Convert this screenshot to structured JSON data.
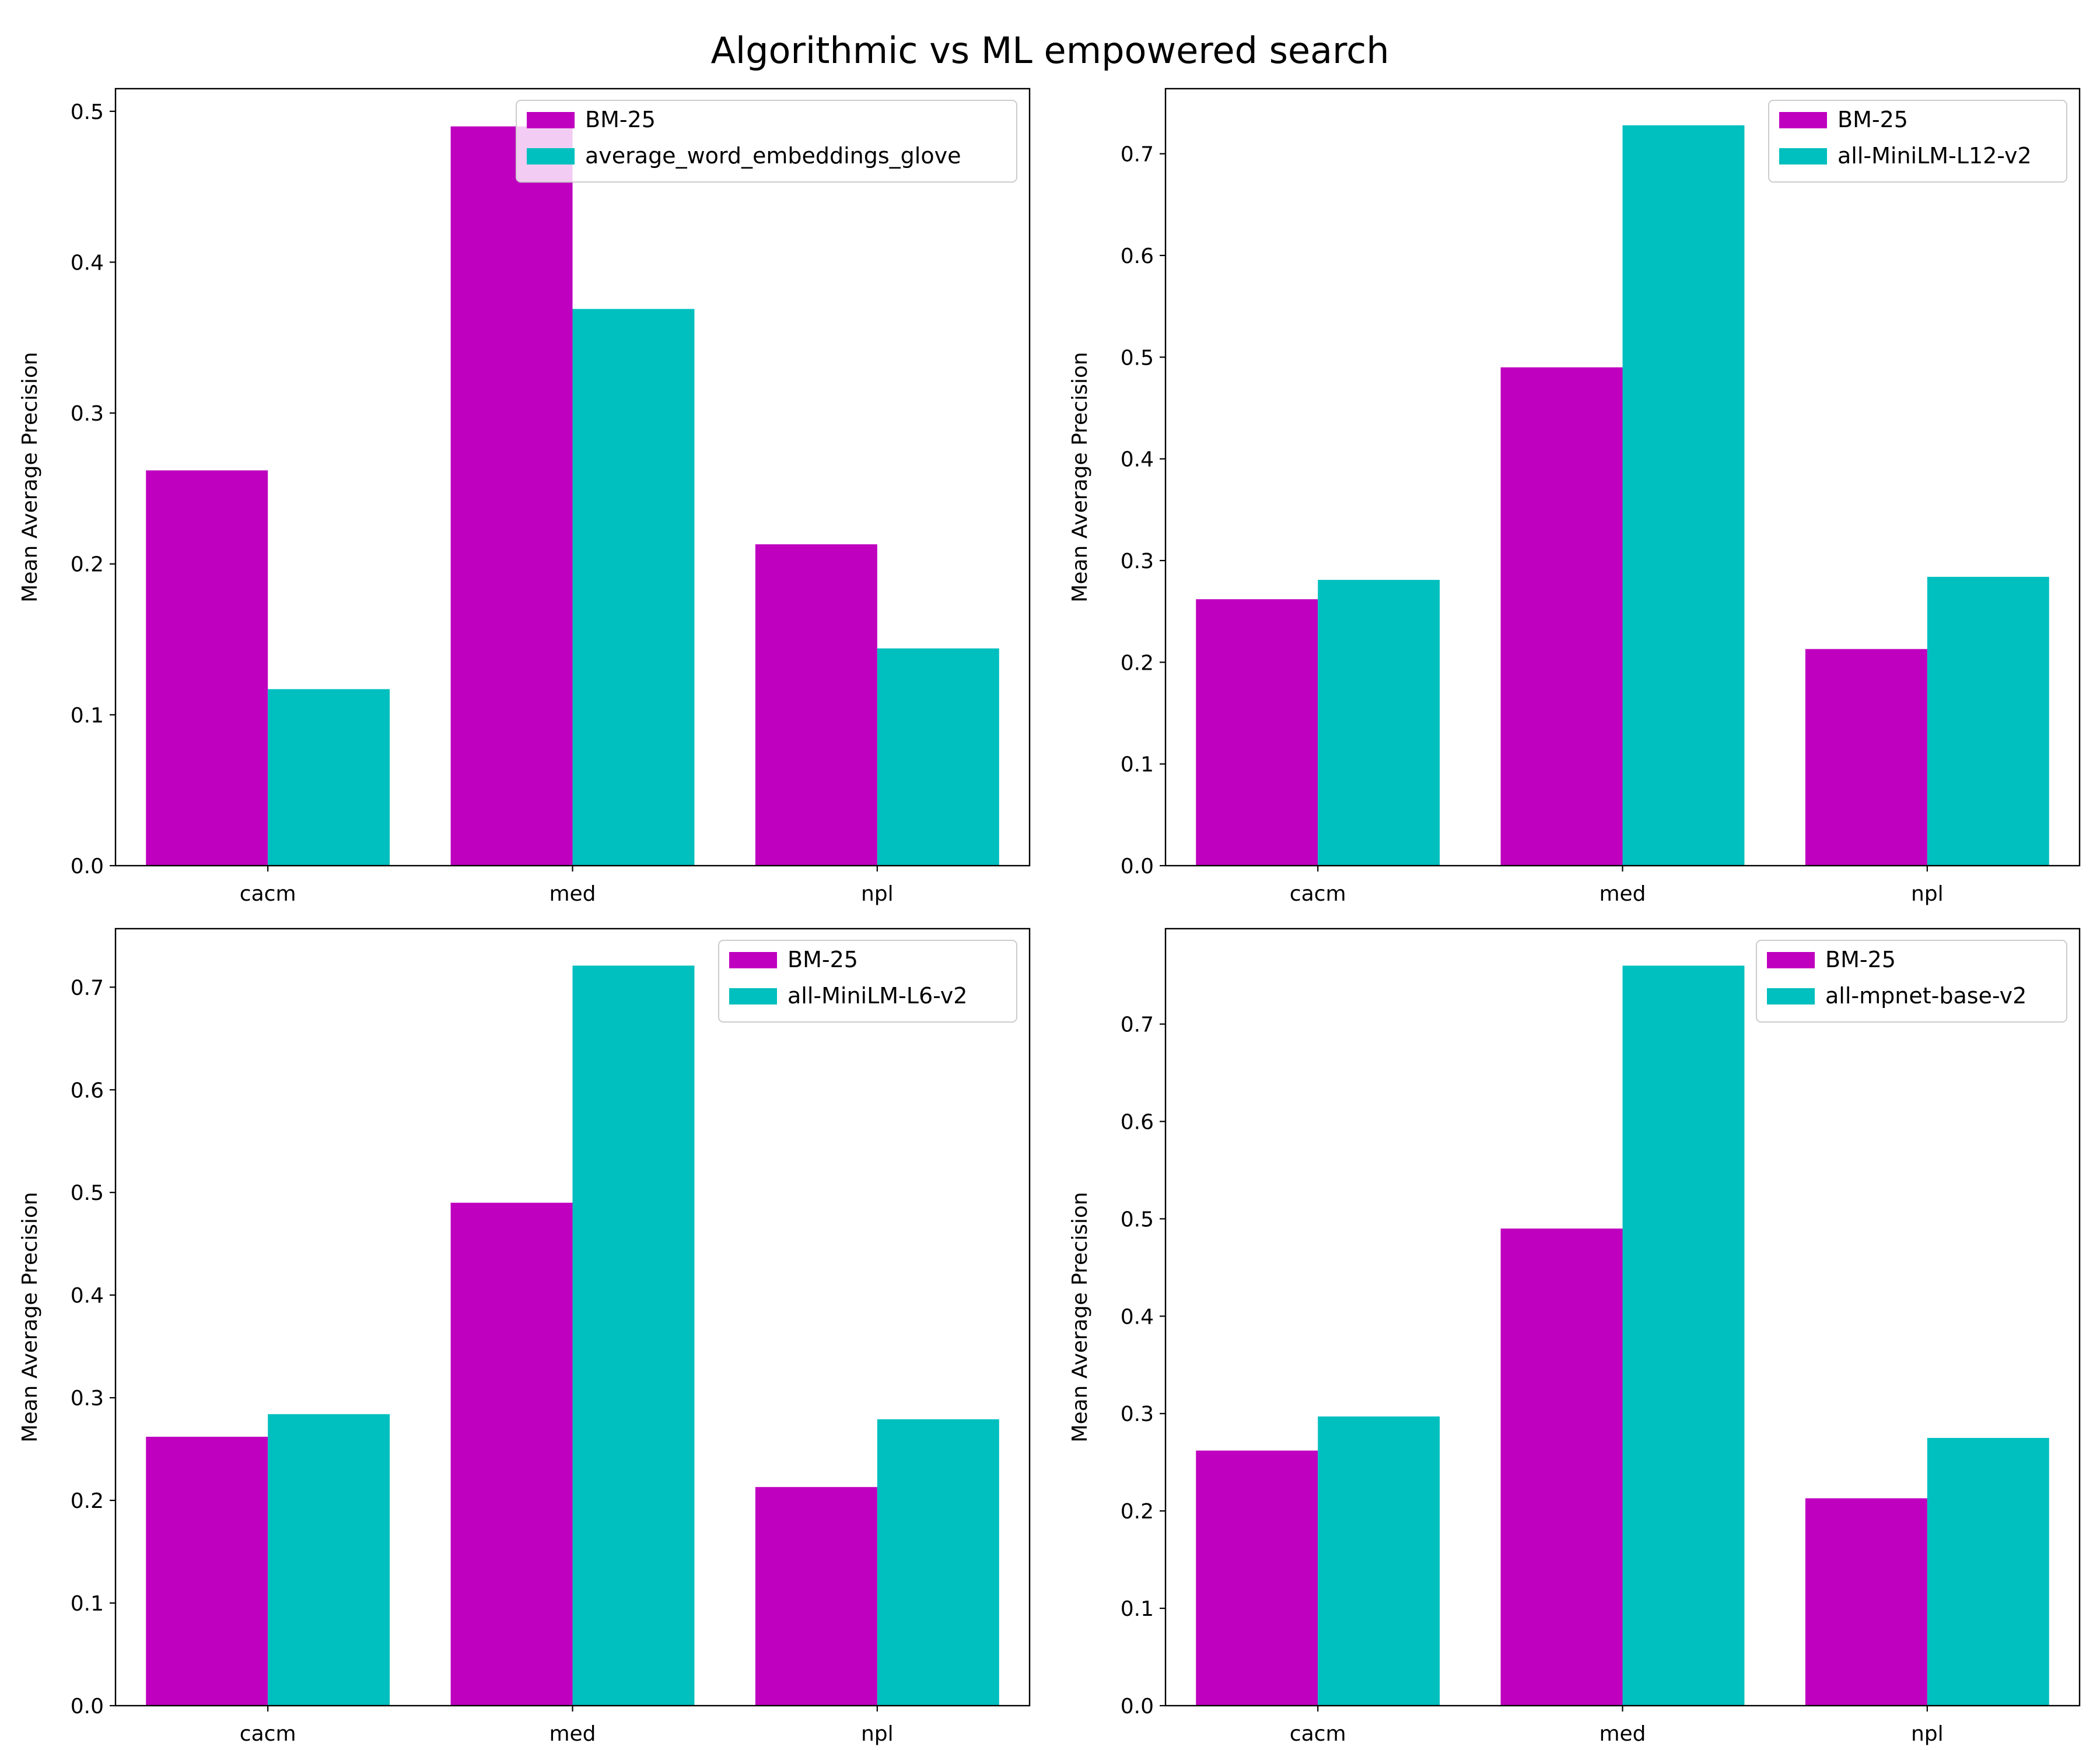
{
  "title": "Algorithmic vs ML empowered search",
  "colors": {
    "bm25": "#bf00bf",
    "model": "#00bfbf"
  },
  "chart_data": [
    {
      "type": "bar",
      "categories": [
        "cacm",
        "med",
        "npl"
      ],
      "ylabel": "Mean Average Precision",
      "xlabel": "",
      "ylim": [
        0,
        0.515
      ],
      "yticks": [
        0.0,
        0.1,
        0.2,
        0.3,
        0.4,
        0.5
      ],
      "tick_format": "0.0",
      "legend_position": "upper right",
      "series": [
        {
          "name": "BM-25",
          "color": "#bf00bf",
          "values": [
            0.262,
            0.49,
            0.213
          ]
        },
        {
          "name": "average_word_embeddings_glove",
          "color": "#00bfbf",
          "values": [
            0.117,
            0.369,
            0.144
          ]
        }
      ]
    },
    {
      "type": "bar",
      "categories": [
        "cacm",
        "med",
        "npl"
      ],
      "ylabel": "Mean Average Precision",
      "xlabel": "",
      "ylim": [
        0,
        0.764
      ],
      "yticks": [
        0.0,
        0.1,
        0.2,
        0.3,
        0.4,
        0.5,
        0.6,
        0.7
      ],
      "tick_format": "0.0",
      "legend_position": "upper right",
      "series": [
        {
          "name": "BM-25",
          "color": "#bf00bf",
          "values": [
            0.262,
            0.49,
            0.213
          ]
        },
        {
          "name": "all-MiniLM-L12-v2",
          "color": "#00bfbf",
          "values": [
            0.281,
            0.728,
            0.284
          ]
        }
      ]
    },
    {
      "type": "bar",
      "categories": [
        "cacm",
        "med",
        "npl"
      ],
      "ylabel": "Mean Average Precision",
      "xlabel": "",
      "ylim": [
        0,
        0.757
      ],
      "yticks": [
        0.0,
        0.1,
        0.2,
        0.3,
        0.4,
        0.5,
        0.6,
        0.7
      ],
      "tick_format": "0.0",
      "legend_position": "upper right",
      "series": [
        {
          "name": "BM-25",
          "color": "#bf00bf",
          "values": [
            0.262,
            0.49,
            0.213
          ]
        },
        {
          "name": "all-MiniLM-L6-v2",
          "color": "#00bfbf",
          "values": [
            0.284,
            0.721,
            0.279
          ]
        }
      ]
    },
    {
      "type": "bar",
      "categories": [
        "cacm",
        "med",
        "npl"
      ],
      "ylabel": "Mean Average Precision",
      "xlabel": "",
      "ylim": [
        0,
        0.798
      ],
      "yticks": [
        0.0,
        0.1,
        0.2,
        0.3,
        0.4,
        0.5,
        0.6,
        0.7
      ],
      "tick_format": "0.0",
      "legend_position": "upper right",
      "series": [
        {
          "name": "BM-25",
          "color": "#bf00bf",
          "values": [
            0.262,
            0.49,
            0.213
          ]
        },
        {
          "name": "all-mpnet-base-v2",
          "color": "#00bfbf",
          "values": [
            0.297,
            0.76,
            0.275
          ]
        }
      ]
    }
  ]
}
